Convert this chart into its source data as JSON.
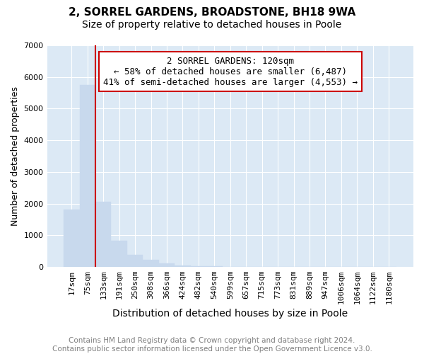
{
  "title_line1": "2, SORREL GARDENS, BROADSTONE, BH18 9WA",
  "title_line2": "Size of property relative to detached houses in Poole",
  "xlabel": "Distribution of detached houses by size in Poole",
  "ylabel": "Number of detached properties",
  "categories": [
    "17sqm",
    "75sqm",
    "133sqm",
    "191sqm",
    "250sqm",
    "308sqm",
    "366sqm",
    "424sqm",
    "482sqm",
    "540sqm",
    "599sqm",
    "657sqm",
    "715sqm",
    "773sqm",
    "831sqm",
    "889sqm",
    "947sqm",
    "1006sqm",
    "1064sqm",
    "1122sqm",
    "1180sqm"
  ],
  "values": [
    1800,
    5750,
    2050,
    830,
    370,
    220,
    100,
    50,
    30,
    15,
    8,
    5,
    5,
    0,
    0,
    0,
    0,
    0,
    0,
    0,
    0
  ],
  "property_line_x": 1.5,
  "annotation_text": "2 SORREL GARDENS: 120sqm\n← 58% of detached houses are smaller (6,487)\n41% of semi-detached houses are larger (4,553) →",
  "bar_color": "#c8d9ed",
  "bar_edge_color": "#c8d9ed",
  "highlight_line_color": "#cc0000",
  "annotation_box_edge_color": "#cc0000",
  "annotation_box_face_color": "#ffffff",
  "axes_bg_color": "#dce9f5",
  "grid_color": "#ffffff",
  "background_color": "#ffffff",
  "ylim": [
    0,
    7000
  ],
  "yticks": [
    0,
    1000,
    2000,
    3000,
    4000,
    5000,
    6000,
    7000
  ],
  "footnote": "Contains HM Land Registry data © Crown copyright and database right 2024.\nContains public sector information licensed under the Open Government Licence v3.0.",
  "title_fontsize": 11,
  "subtitle_fontsize": 10,
  "xlabel_fontsize": 10,
  "ylabel_fontsize": 9,
  "tick_fontsize": 8,
  "annotation_fontsize": 9,
  "footnote_fontsize": 7.5
}
